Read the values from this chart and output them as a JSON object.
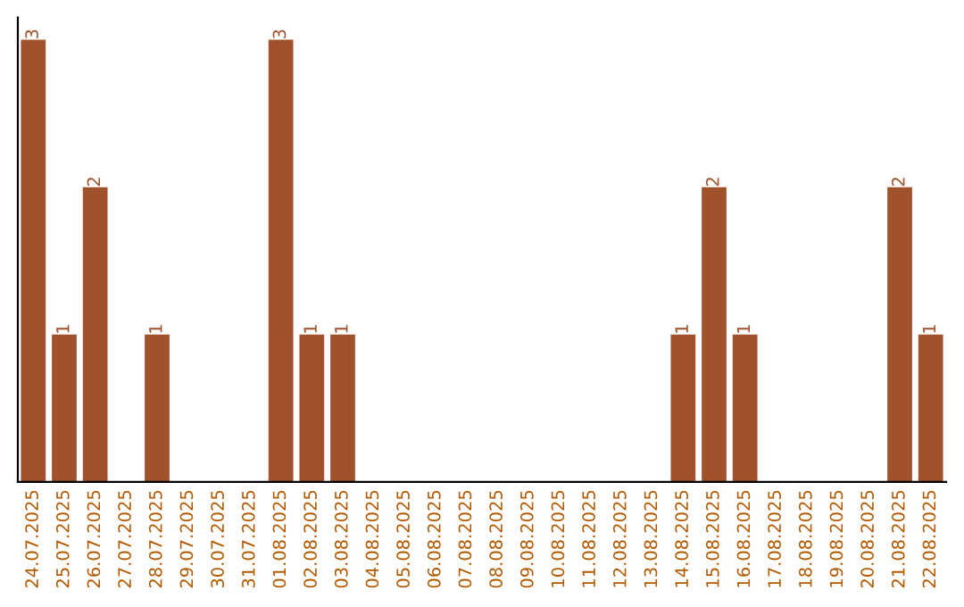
{
  "chart_data": {
    "type": "bar",
    "categories": [
      "24.07.2025",
      "25.07.2025",
      "26.07.2025",
      "27.07.2025",
      "28.07.2025",
      "29.07.2025",
      "30.07.2025",
      "31.07.2025",
      "01.08.2025",
      "02.08.2025",
      "03.08.2025",
      "04.08.2025",
      "05.08.2025",
      "06.08.2025",
      "07.08.2025",
      "08.08.2025",
      "09.08.2025",
      "10.08.2025",
      "11.08.2025",
      "12.08.2025",
      "13.08.2025",
      "14.08.2025",
      "15.08.2025",
      "16.08.2025",
      "17.08.2025",
      "18.08.2025",
      "19.08.2025",
      "20.08.2025",
      "21.08.2025",
      "22.08.2025"
    ],
    "values": [
      3,
      1,
      2,
      0,
      1,
      0,
      0,
      0,
      3,
      1,
      1,
      0,
      0,
      0,
      0,
      0,
      0,
      0,
      0,
      0,
      0,
      1,
      2,
      1,
      0,
      0,
      0,
      0,
      2,
      1
    ],
    "value_labels": [
      "3",
      "1",
      "2",
      null,
      "1",
      null,
      null,
      null,
      "3",
      "1",
      "1",
      null,
      null,
      null,
      null,
      null,
      null,
      null,
      null,
      null,
      null,
      "1",
      "2",
      "1",
      null,
      null,
      null,
      null,
      "2",
      "1"
    ],
    "color": "#a0522d",
    "grid": false,
    "legend": false
  }
}
